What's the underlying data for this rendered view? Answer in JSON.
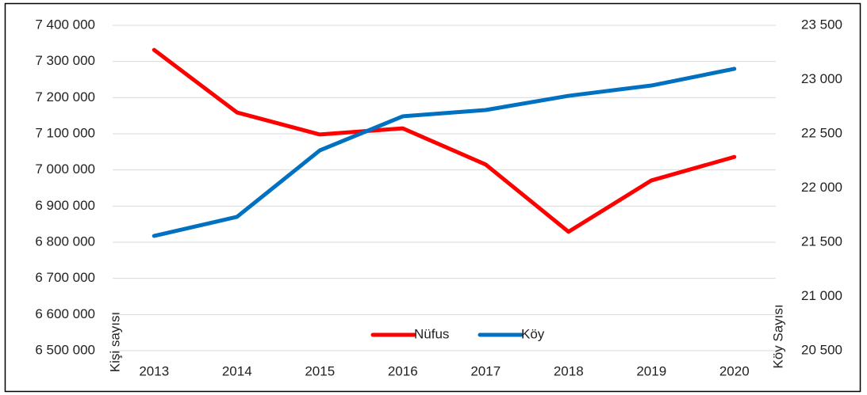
{
  "chart_data": {
    "type": "line",
    "categories": [
      "2013",
      "2014",
      "2015",
      "2016",
      "2017",
      "2018",
      "2019",
      "2020"
    ],
    "series": [
      {
        "name": "Nüfus",
        "color": "#ff0000",
        "values": [
          7332000,
          7159000,
          7098000,
          7115000,
          7015000,
          6829000,
          6971000,
          7036000
        ]
      },
      {
        "name": "Köy",
        "color": "#0070c0",
        "axis": "y2",
        "values": [
          21558,
          21734,
          22347,
          22661,
          22719,
          22850,
          22945,
          23099
        ]
      }
    ],
    "ylabel": "Kişi sayısı",
    "y2label": "Köy Sayısı",
    "ylim": [
      6500000,
      7400000
    ],
    "yticks": [
      {
        "value": 6500000,
        "label": "6 500 000"
      },
      {
        "value": 6600000,
        "label": "6 600 000"
      },
      {
        "value": 6700000,
        "label": "6 700 000"
      },
      {
        "value": 6800000,
        "label": "6 800 000"
      },
      {
        "value": 6900000,
        "label": "6 900 000"
      },
      {
        "value": 7000000,
        "label": "7 000 000"
      },
      {
        "value": 7100000,
        "label": "7 100 000"
      },
      {
        "value": 7200000,
        "label": "7 200 000"
      },
      {
        "value": 7300000,
        "label": "7 300 000"
      },
      {
        "value": 7400000,
        "label": "7 400 000"
      }
    ],
    "y2lim": [
      20500,
      23500
    ],
    "y2ticks": [
      {
        "value": 20500,
        "label": "20 500"
      },
      {
        "value": 21000,
        "label": "21 000"
      },
      {
        "value": 21500,
        "label": "21 500"
      },
      {
        "value": 22000,
        "label": "22 000"
      },
      {
        "value": 22500,
        "label": "22 500"
      },
      {
        "value": 23000,
        "label": "23 000"
      },
      {
        "value": 23500,
        "label": "23 500"
      }
    ],
    "grid": true,
    "legend": "bottom"
  }
}
